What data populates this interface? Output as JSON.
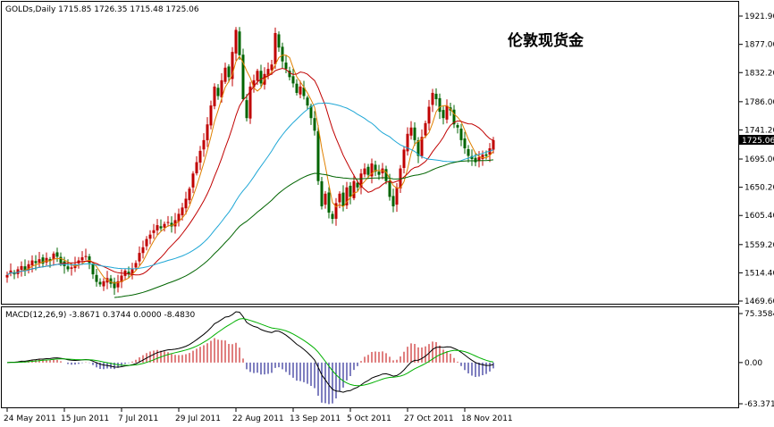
{
  "chart_data": [
    {
      "type": "candlestick",
      "header": "GOLDs,Daily  1715.85 1726.35 1715.48 1725.06",
      "annotation": "伦敦现货金",
      "current_price_label": "1725.06",
      "ylim": [
        1469.6,
        1921.9
      ],
      "y_tick_labels": [
        "1921.90",
        "1877.00",
        "1832.20",
        "1786.00",
        "1741.20",
        "1695.00",
        "1650.20",
        "1605.40",
        "1559.20",
        "1514.40",
        "1469.60"
      ],
      "y_tick_values": [
        1921.9,
        1877.0,
        1832.2,
        1786.0,
        1741.2,
        1695.0,
        1650.2,
        1605.4,
        1559.2,
        1514.4,
        1469.6
      ],
      "x_tick_labels": [
        "24 May 2011",
        "15 Jun 2011",
        "7 Jul 2011",
        "29 Jul 2011",
        "22 Aug 2011",
        "13 Sep 2011",
        "5 Oct 2011",
        "27 Oct 2011",
        "18 Nov 2011"
      ],
      "x_tick_bar_index": [
        0,
        16,
        32,
        48,
        64,
        80,
        96,
        112,
        128
      ],
      "grid": false,
      "colors": {
        "up": "#c00000",
        "down": "#006400",
        "ma_fast": "#e08000",
        "ma_mid": "#c00000",
        "ma_slow": "#1fa7d6",
        "ma_long": "#006400"
      },
      "closes": [
        1511,
        1518,
        1512,
        1520,
        1525,
        1518,
        1528,
        1534,
        1530,
        1536,
        1529,
        1538,
        1533,
        1545,
        1540,
        1530,
        1525,
        1520,
        1523,
        1528,
        1534,
        1539,
        1541,
        1530,
        1512,
        1500,
        1496,
        1501,
        1506,
        1497,
        1490,
        1501,
        1510,
        1518,
        1512,
        1520,
        1530,
        1546,
        1555,
        1568,
        1575,
        1582,
        1590,
        1585,
        1592,
        1595,
        1588,
        1598,
        1608,
        1618,
        1632,
        1648,
        1672,
        1690,
        1708,
        1725,
        1750,
        1780,
        1810,
        1795,
        1820,
        1840,
        1825,
        1865,
        1900,
        1860,
        1790,
        1760,
        1810,
        1820,
        1835,
        1815,
        1830,
        1838,
        1845,
        1895,
        1872,
        1850,
        1838,
        1825,
        1815,
        1800,
        1810,
        1795,
        1780,
        1760,
        1740,
        1660,
        1620,
        1640,
        1610,
        1600,
        1625,
        1640,
        1620,
        1650,
        1635,
        1660,
        1650,
        1672,
        1680,
        1670,
        1688,
        1675,
        1670,
        1680,
        1660,
        1635,
        1620,
        1650,
        1680,
        1710,
        1735,
        1745,
        1725,
        1700,
        1730,
        1752,
        1778,
        1800,
        1790,
        1770,
        1760,
        1780,
        1772,
        1750,
        1745,
        1725,
        1712,
        1700,
        1695,
        1690,
        1698,
        1702,
        1700,
        1712,
        1725
      ]
    },
    {
      "type": "macd",
      "header": "MACD(12,26,9) -3.8671 0.3744 0.0000 -8.4830",
      "ylim": [
        -63.3715,
        75.3584
      ],
      "y_tick_labels": [
        "75.3584",
        "0.00",
        "-63.3715"
      ],
      "y_tick_values": [
        75.3584,
        0,
        -63.3715
      ],
      "colors": {
        "hist_up": "#c00000",
        "hist_down": "#000080",
        "macd": "#000000",
        "signal": "#00b000"
      }
    }
  ]
}
